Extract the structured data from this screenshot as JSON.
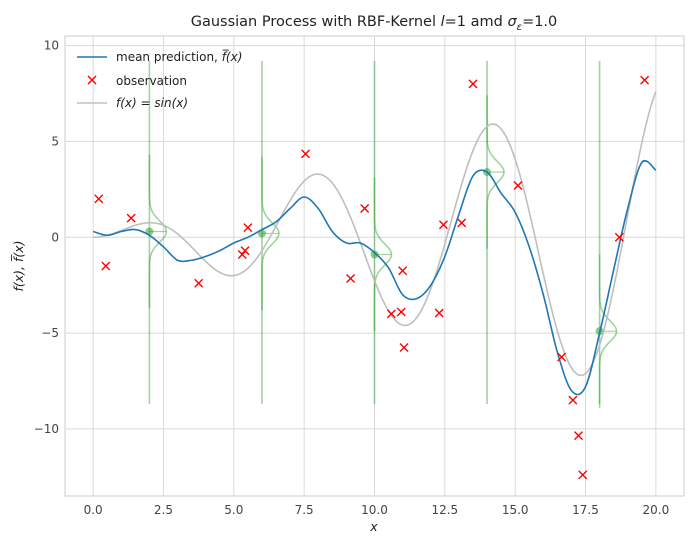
{
  "chart_data": {
    "type": "line",
    "title": "Gaussian Process with RBF-Kernel l=1 amd σε=1.0",
    "title_parts": {
      "prefix": "Gaussian Process with RBF-Kernel ",
      "l_symbol": "l",
      "middle": "=1 amd ",
      "sigma": "σ",
      "sigma_sub": "ε",
      "suffix": "=1.0"
    },
    "xlabel": "x",
    "ylabel": "f(x), f̅(x)",
    "xlim": [
      -1,
      21
    ],
    "ylim": [
      -13.5,
      10.5
    ],
    "xticks": [
      0,
      2.5,
      5,
      7.5,
      10,
      12.5,
      15,
      17.5,
      20
    ],
    "xtick_labels": [
      "0.0",
      "2.5",
      "5.0",
      "7.5",
      "10.0",
      "12.5",
      "15.0",
      "17.5",
      "20.0"
    ],
    "yticks": [
      10,
      5,
      0,
      -5,
      -10
    ],
    "ytick_labels": [
      "10",
      "5",
      "0",
      "−5",
      "−10"
    ],
    "grid": true,
    "legend_position": "top-left",
    "legend": [
      {
        "label": "mean prediction, f̅(x)",
        "text": "mean prediction, ",
        "math": "f̅(x)",
        "kind": "line",
        "color": "#1f77b4"
      },
      {
        "label": "observation",
        "text": "observation",
        "math": "",
        "kind": "marker",
        "color": "#ff0000"
      },
      {
        "label": "f(x) = sin(x)",
        "text": "",
        "math": "f(x) = sin(x)",
        "kind": "line",
        "color": "#bfbfbf"
      }
    ],
    "series": [
      {
        "name": "mean prediction, f̅(x)",
        "color": "#1f77b4",
        "x": [
          0,
          0.5,
          1.0,
          1.5,
          2.0,
          2.5,
          3.0,
          3.5,
          4.0,
          4.5,
          5.0,
          5.5,
          6.0,
          6.5,
          7.0,
          7.5,
          8.0,
          8.5,
          9.0,
          9.5,
          10.0,
          10.5,
          11.0,
          11.5,
          12.0,
          12.5,
          13.0,
          13.5,
          14.0,
          14.5,
          15.0,
          15.5,
          16.0,
          16.5,
          17.0,
          17.5,
          18.0,
          18.5,
          19.0,
          19.5,
          20.0
        ],
        "y": [
          0.3,
          0.1,
          0.3,
          0.4,
          0.1,
          -0.5,
          -1.2,
          -1.2,
          -1.0,
          -0.7,
          -0.3,
          0.0,
          0.4,
          0.8,
          1.5,
          2.1,
          1.5,
          0.3,
          -0.3,
          -0.3,
          -0.8,
          -1.6,
          -3.0,
          -3.2,
          -2.5,
          -1.0,
          1.2,
          3.2,
          3.4,
          2.3,
          1.3,
          -0.5,
          -3.0,
          -6.0,
          -8.0,
          -7.8,
          -5.0,
          -1.7,
          1.5,
          3.9,
          3.5
        ]
      },
      {
        "name": "f(x) = sin(x)",
        "color": "#bfbfbf",
        "function": "sin(x)",
        "x_range": [
          0,
          20
        ]
      }
    ],
    "observations": {
      "name": "observation",
      "color": "#ff0000",
      "x": [
        0.2,
        0.45,
        1.35,
        3.75,
        5.3,
        5.4,
        5.5,
        7.55,
        9.15,
        9.65,
        10.6,
        10.95,
        11.0,
        11.05,
        12.3,
        12.45,
        13.1,
        13.5,
        15.1,
        16.65,
        17.05,
        17.25,
        17.4,
        18.7,
        19.6
      ],
      "y": [
        2.0,
        -1.5,
        1.0,
        -2.4,
        -0.9,
        -0.7,
        0.5,
        4.35,
        -2.15,
        1.5,
        -4.0,
        -3.9,
        -1.75,
        -5.75,
        -3.95,
        0.65,
        0.75,
        8.0,
        2.7,
        -6.25,
        -8.5,
        -10.35,
        -12.4,
        0.0,
        8.2
      ]
    },
    "predictive_distributions": {
      "color": "#2ca02c",
      "x": [
        2,
        6,
        10,
        14,
        18
      ],
      "mean": [
        0.3,
        0.2,
        -0.9,
        3.4,
        -4.9
      ],
      "line_ymin": -8.7,
      "line_ymax": 9.2
    }
  }
}
